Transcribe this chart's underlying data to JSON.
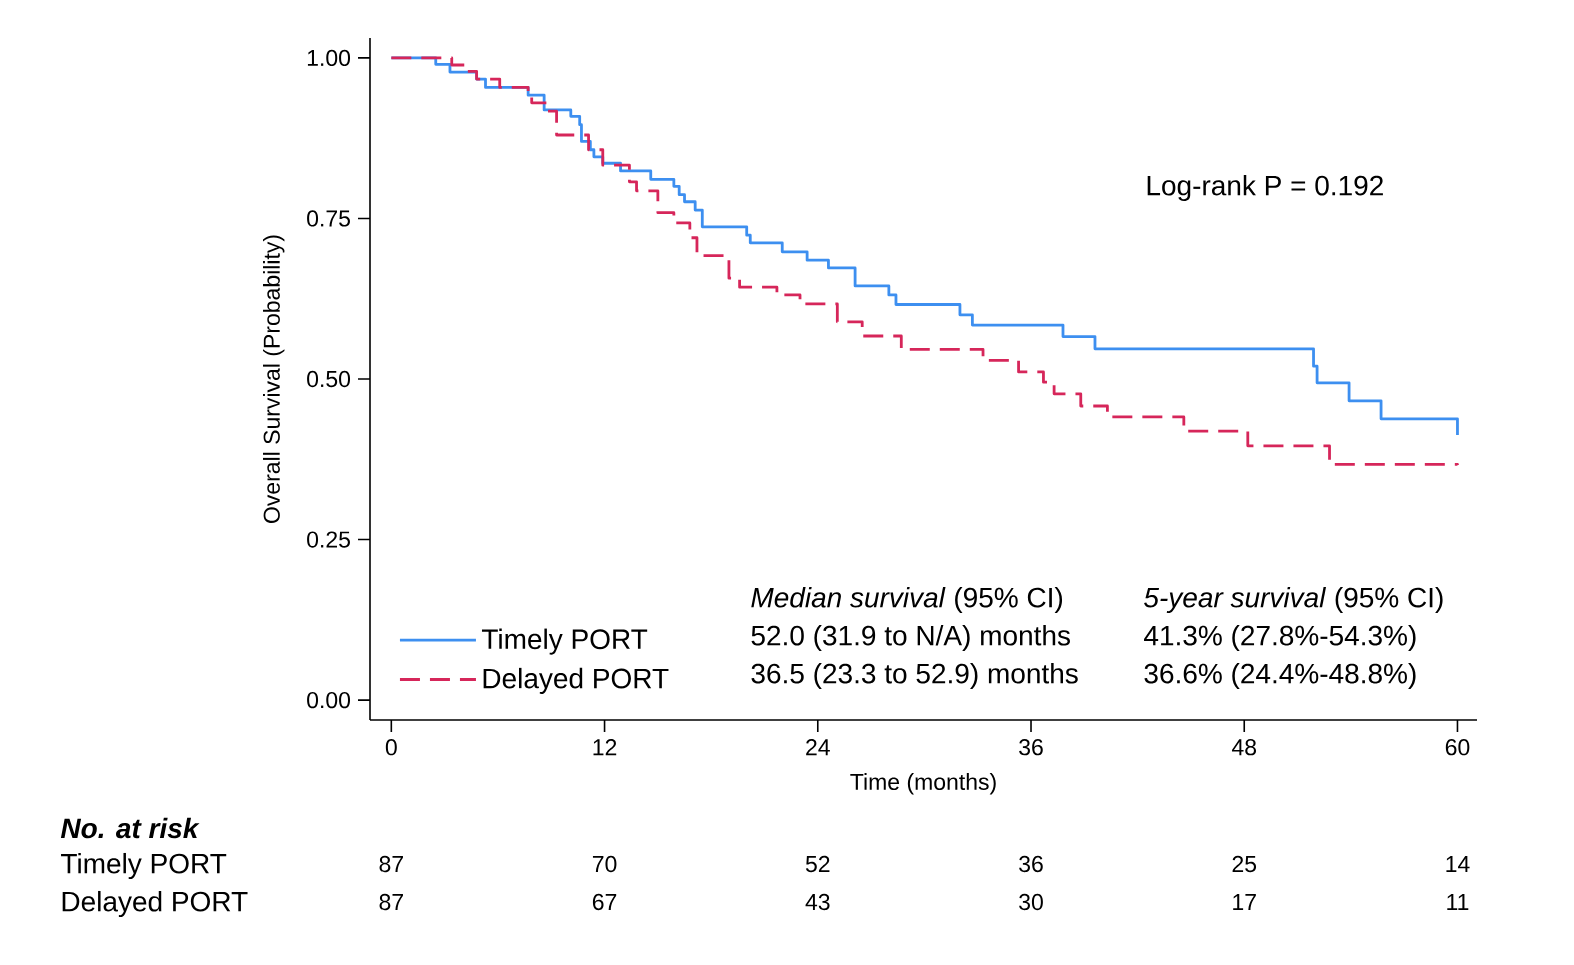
{
  "chart_data": {
    "type": "step",
    "xlabel": "Time (months)",
    "ylabel": "Overall Survival (Probability)",
    "xlim": [
      -1.2,
      61.1
    ],
    "ylim": [
      -0.031,
      1.031
    ],
    "xticks": [
      0,
      12,
      24,
      36,
      48,
      60
    ],
    "yticks": [
      {
        "value": 0,
        "label": "0.00"
      },
      {
        "value": 0.25,
        "label": "0.25"
      },
      {
        "value": 0.5,
        "label": "0.50"
      },
      {
        "value": 0.75,
        "label": "0.75"
      },
      {
        "value": 1,
        "label": "1.00"
      }
    ],
    "legend": "bottom left",
    "tick_labels": true,
    "series": [
      {
        "name": "Timely PORT",
        "color": "#3d8ff0",
        "line_style": "solid",
        "x": [
          0,
          2.5,
          3.3,
          4.8,
          5.3,
          7.7,
          8.6,
          10.1,
          10.6,
          10.7,
          11.2,
          11.4,
          11.9,
          12.9,
          14.6,
          15.9,
          16.2,
          16.5,
          17.1,
          17.5,
          20.0,
          20.2,
          22.0,
          23.4,
          24.6,
          26.1,
          28.0,
          28.4,
          32.0,
          32.7,
          37.8,
          39.6,
          51.9,
          52.1,
          53.9,
          55.7,
          60,
          60
        ],
        "values": [
          1.0,
          0.99,
          0.978,
          0.967,
          0.954,
          0.942,
          0.919,
          0.909,
          0.896,
          0.87,
          0.857,
          0.846,
          0.836,
          0.824,
          0.811,
          0.8,
          0.787,
          0.776,
          0.763,
          0.737,
          0.724,
          0.712,
          0.698,
          0.685,
          0.673,
          0.645,
          0.631,
          0.616,
          0.6,
          0.584,
          0.566,
          0.547,
          0.52,
          0.494,
          0.466,
          0.438,
          0.438,
          0.413
        ]
      },
      {
        "name": "Delayed PORT",
        "color": "#d6265a",
        "line_style": "dashed",
        "x": [
          0,
          3.4,
          4.3,
          4.8,
          6.1,
          7.7,
          7.9,
          8.8,
          9.3,
          11.1,
          11.9,
          13.4,
          13.8,
          15.0,
          15.9,
          16.8,
          17.2,
          19.0,
          19.6,
          21.7,
          23.0,
          25.1,
          26.5,
          28.7,
          33.3,
          35.3,
          36.7,
          37.3,
          38.8,
          40.3,
          44.6,
          48.2,
          52.8,
          60
        ],
        "values": [
          1.0,
          0.989,
          0.979,
          0.967,
          0.954,
          0.94,
          0.93,
          0.917,
          0.88,
          0.857,
          0.833,
          0.807,
          0.793,
          0.759,
          0.743,
          0.72,
          0.692,
          0.657,
          0.643,
          0.631,
          0.617,
          0.589,
          0.567,
          0.546,
          0.529,
          0.511,
          0.495,
          0.477,
          0.458,
          0.441,
          0.419,
          0.396,
          0.367,
          0.366
        ]
      }
    ],
    "annotations": [
      "Log-rank P = 0.192",
      "*Median survival* (95% CI)",
      "*5-year survival* (95% CI)",
      "52.0 (31.9 to N/A) months",
      "41.3% (27.8%-54.3%)",
      "36.5 (23.3 to 52.9) months",
      "36.6% (24.4%-48.8%)",
      "No. at risk",
      "Timely PORT",
      "Delayed PORT",
      "87",
      "70",
      "52",
      "36",
      "25",
      "14",
      "87",
      "67",
      "43",
      "30",
      "17",
      "11"
    ]
  }
}
